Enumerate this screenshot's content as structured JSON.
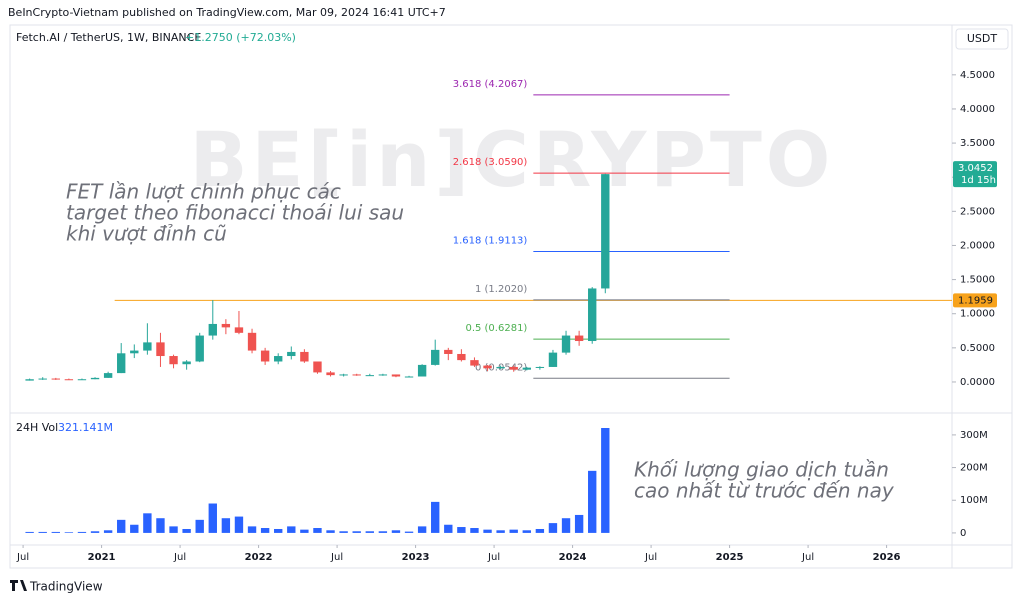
{
  "chart_data": {
    "type": "candlestick",
    "publisher": "BeInCrypto-Vietnam published on TradingView.com, Mar 09, 2024 16:41 UTC+7",
    "title": "Fetch.AI / TetherUS, 1W, BINANCE",
    "change_label": "+1.2750 (+72.03%)",
    "currency": "USDT",
    "watermark": "BE[in]CRYPTO",
    "footer": "TradingView",
    "colors": {
      "up": "#26a69a",
      "down": "#ef5350"
    },
    "x": [
      "2020-07",
      "2020-08",
      "2020-09",
      "2020-10",
      "2020-11",
      "2020-12",
      "2021-01",
      "2021-02",
      "2021-03",
      "2021-04",
      "2021-05",
      "2021-06",
      "2021-07",
      "2021-08",
      "2021-09",
      "2021-10",
      "2021-11",
      "2021-12",
      "2022-01",
      "2022-02",
      "2022-03",
      "2022-04",
      "2022-05",
      "2022-06",
      "2022-07",
      "2022-08",
      "2022-09",
      "2022-10",
      "2022-11",
      "2022-12",
      "2023-01",
      "2023-02",
      "2023-03",
      "2023-04",
      "2023-05",
      "2023-06",
      "2023-07",
      "2023-08",
      "2023-09",
      "2023-10",
      "2023-11",
      "2023-12",
      "2024-01",
      "2024-02",
      "2024-03"
    ],
    "open": [
      0.02,
      0.04,
      0.05,
      0.04,
      0.03,
      0.04,
      0.06,
      0.13,
      0.42,
      0.46,
      0.58,
      0.38,
      0.26,
      0.3,
      0.68,
      0.85,
      0.8,
      0.72,
      0.46,
      0.3,
      0.38,
      0.44,
      0.3,
      0.14,
      0.1,
      0.11,
      0.1,
      0.1,
      0.11,
      0.08,
      0.08,
      0.25,
      0.47,
      0.41,
      0.32,
      0.24,
      0.2,
      0.22,
      0.18,
      0.21,
      0.22,
      0.43,
      0.68,
      0.6,
      1.37
    ],
    "high": [
      0.05,
      0.07,
      0.06,
      0.05,
      0.05,
      0.07,
      0.15,
      0.57,
      0.55,
      0.86,
      0.72,
      0.4,
      0.32,
      0.72,
      1.2,
      0.92,
      1.04,
      0.78,
      0.5,
      0.42,
      0.52,
      0.48,
      0.3,
      0.16,
      0.12,
      0.12,
      0.12,
      0.12,
      0.11,
      0.09,
      0.26,
      0.62,
      0.5,
      0.48,
      0.36,
      0.25,
      0.24,
      0.24,
      0.22,
      0.23,
      0.47,
      0.75,
      0.75,
      1.39,
      3.05
    ],
    "low": [
      0.02,
      0.03,
      0.03,
      0.03,
      0.03,
      0.04,
      0.06,
      0.13,
      0.35,
      0.4,
      0.22,
      0.2,
      0.18,
      0.29,
      0.62,
      0.7,
      0.7,
      0.42,
      0.25,
      0.26,
      0.33,
      0.28,
      0.12,
      0.08,
      0.08,
      0.09,
      0.09,
      0.09,
      0.07,
      0.07,
      0.08,
      0.24,
      0.32,
      0.3,
      0.22,
      0.16,
      0.19,
      0.15,
      0.17,
      0.18,
      0.22,
      0.4,
      0.53,
      0.56,
      1.3
    ],
    "close": [
      0.04,
      0.05,
      0.04,
      0.03,
      0.04,
      0.06,
      0.13,
      0.42,
      0.46,
      0.58,
      0.38,
      0.26,
      0.3,
      0.68,
      0.85,
      0.8,
      0.72,
      0.46,
      0.3,
      0.38,
      0.44,
      0.3,
      0.14,
      0.1,
      0.11,
      0.1,
      0.1,
      0.11,
      0.08,
      0.08,
      0.25,
      0.47,
      0.41,
      0.32,
      0.24,
      0.2,
      0.22,
      0.18,
      0.21,
      0.22,
      0.43,
      0.68,
      0.6,
      1.37,
      3.0452
    ],
    "xlim": [
      "2020-06",
      "2026-06"
    ],
    "xticks": [
      {
        "value": "2020-07",
        "label": "Jul"
      },
      {
        "value": "2021-01",
        "label": "2021"
      },
      {
        "value": "2021-07",
        "label": "Jul"
      },
      {
        "value": "2022-01",
        "label": "2022"
      },
      {
        "value": "2022-07",
        "label": "Jul"
      },
      {
        "value": "2023-01",
        "label": "2023"
      },
      {
        "value": "2023-07",
        "label": "Jul"
      },
      {
        "value": "2024-01",
        "label": "2024"
      },
      {
        "value": "2024-07",
        "label": "Jul"
      },
      {
        "value": "2025-01",
        "label": "2025"
      },
      {
        "value": "2025-07",
        "label": "Jul"
      },
      {
        "value": "2026-01",
        "label": "2026"
      }
    ],
    "ylim": [
      -0.44,
      5.23
    ],
    "yticks": [
      {
        "value": 0,
        "label": "0.0000"
      },
      {
        "value": 0.5,
        "label": "0.5000"
      },
      {
        "value": 1,
        "label": "1.0000"
      },
      {
        "value": 1.5,
        "label": "1.5000"
      },
      {
        "value": 2,
        "label": "2.0000"
      },
      {
        "value": 2.5,
        "label": "2.5000"
      },
      {
        "value": 3,
        "label": "3.0000"
      },
      {
        "value": 3.5,
        "label": "3.5000"
      },
      {
        "value": 4,
        "label": "4.0000"
      },
      {
        "value": 4.5,
        "label": "4.5000"
      }
    ],
    "last_price": {
      "value": 3.0452,
      "countdown": "1d 15h",
      "color": "#22ab94"
    },
    "horizontal_line": {
      "value": 1.1959,
      "start": "2021-02",
      "color": "#f7a21b"
    },
    "fib": {
      "start": "2023-10",
      "end": "2025-01",
      "levels": [
        {
          "label": "3.618 (4.2067)",
          "value": 4.2067,
          "color": "#9c27b0"
        },
        {
          "label": "2.618 (3.0590)",
          "value": 3.059,
          "color": "#f23645"
        },
        {
          "label": "1.618 (1.9113)",
          "value": 1.9113,
          "color": "#2962ff"
        },
        {
          "label": "1 (1.2020)",
          "value": 1.202,
          "color": "#787b86"
        },
        {
          "label": "0.5 (0.6281)",
          "value": 0.6281,
          "color": "#4caf50"
        },
        {
          "label": "0 (0.0542)",
          "value": 0.0542,
          "color": "#787b86"
        }
      ]
    },
    "volume": {
      "name": "24H Vol",
      "last_label": "321.141M",
      "color": "#2962ff",
      "values": [
        3,
        3,
        3,
        2,
        3,
        5,
        8,
        40,
        25,
        60,
        45,
        20,
        12,
        40,
        90,
        45,
        50,
        20,
        15,
        12,
        20,
        10,
        15,
        8,
        5,
        5,
        5,
        5,
        8,
        4,
        20,
        95,
        25,
        18,
        15,
        10,
        8,
        10,
        8,
        12,
        30,
        45,
        55,
        190,
        321.141
      ],
      "ylim": [
        -37,
        364
      ],
      "yticks": [
        {
          "value": 0,
          "label": "0"
        },
        {
          "value": 100,
          "label": "100M"
        },
        {
          "value": 200,
          "label": "200M"
        },
        {
          "value": 300,
          "label": "300M"
        }
      ]
    },
    "annotations": [
      {
        "lines": [
          "FET lần lượt chinh phục các",
          "target theo fibonacci thoái lui sau",
          "khi vượt đỉnh cũ"
        ]
      },
      {
        "lines": [
          "Khối lượng giao dịch tuần",
          "cao nhất từ trước đến nay"
        ]
      }
    ]
  }
}
